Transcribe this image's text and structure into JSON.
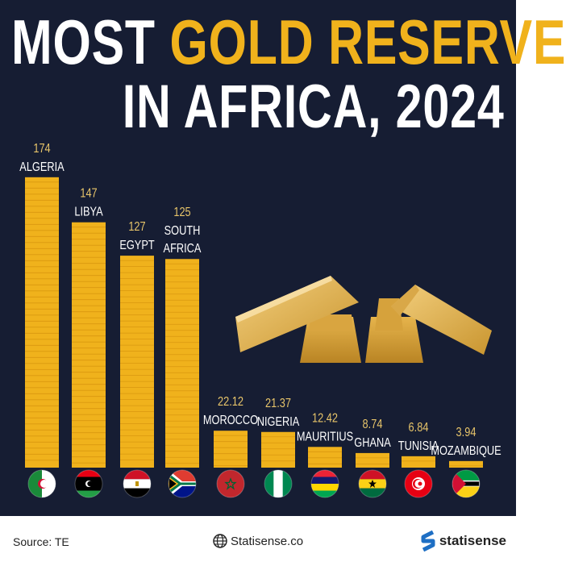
{
  "title": {
    "line1_white": "MOST",
    "line1_gold": "GOLD RESERVE",
    "line2": "IN AFRICA, 2024"
  },
  "colors": {
    "background": "#161d33",
    "gold": "#f0b21c",
    "value_label": "#e8c56a",
    "text": "#ffffff"
  },
  "chart_data": {
    "type": "bar",
    "title": "MOST GOLD RESERVE IN AFRICA, 2024",
    "categories": [
      "ALGERIA",
      "LIBYA",
      "EGYPT",
      "SOUTH AFRICA",
      "MOROCCO",
      "NIGERIA",
      "MAURITIUS",
      "GHANA",
      "TUNISIA",
      "MOZAMBIQUE"
    ],
    "values": [
      174,
      147,
      127,
      125,
      22.12,
      21.37,
      12.42,
      8.74,
      6.84,
      3.94
    ],
    "value_labels": [
      "174",
      "147",
      "127",
      "125",
      "22.12",
      "21.37",
      "12.42",
      "8.74",
      "6.84",
      "3.94"
    ],
    "flag_icons": [
      "algeria-flag",
      "libya-flag",
      "egypt-flag",
      "south-africa-flag",
      "morocco-flag",
      "nigeria-flag",
      "mauritius-flag",
      "ghana-flag",
      "tunisia-flag",
      "mozambique-flag"
    ],
    "xlabel": "",
    "ylabel": "",
    "grid": false,
    "legend": "none"
  },
  "footer": {
    "source": "Source: TE",
    "website": "Statisense.co",
    "brand": "statisense"
  }
}
